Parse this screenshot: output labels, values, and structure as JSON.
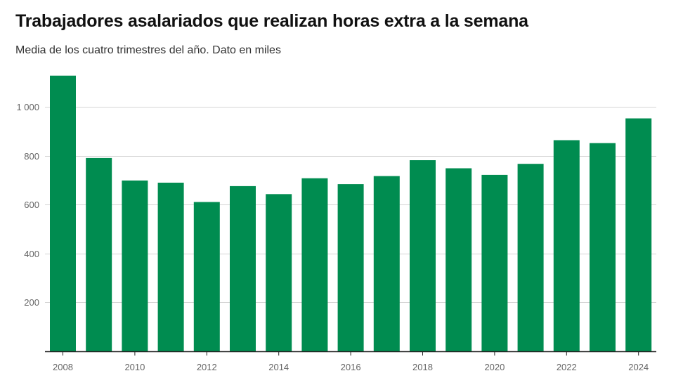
{
  "chart_data": {
    "type": "bar",
    "title": "Trabajadores asalariados que realizan horas extra a la semana",
    "subtitle": "Media de los cuatro trimestres del año. Dato en miles",
    "categories": [
      "2008",
      "2009",
      "2010",
      "2011",
      "2012",
      "2013",
      "2014",
      "2015",
      "2016",
      "2017",
      "2018",
      "2019",
      "2020",
      "2021",
      "2022",
      "2023",
      "2024"
    ],
    "values": [
      1128,
      791,
      699,
      690,
      611,
      676,
      643,
      708,
      684,
      717,
      782,
      749,
      722,
      767,
      864,
      852,
      953
    ],
    "x_tick_labels": [
      "2008",
      "2010",
      "2012",
      "2014",
      "2016",
      "2018",
      "2020",
      "2022",
      "2024"
    ],
    "y_ticks": [
      200,
      400,
      600,
      800,
      1000
    ],
    "y_tick_labels": [
      "200",
      "400",
      "600",
      "800",
      "1 000"
    ],
    "ylim": [
      0,
      1150
    ],
    "xlabel": "",
    "ylabel": "",
    "grid": true,
    "colors": {
      "bar": "#008c50",
      "grid": "#d4d4d4",
      "axis": "#222222"
    }
  }
}
